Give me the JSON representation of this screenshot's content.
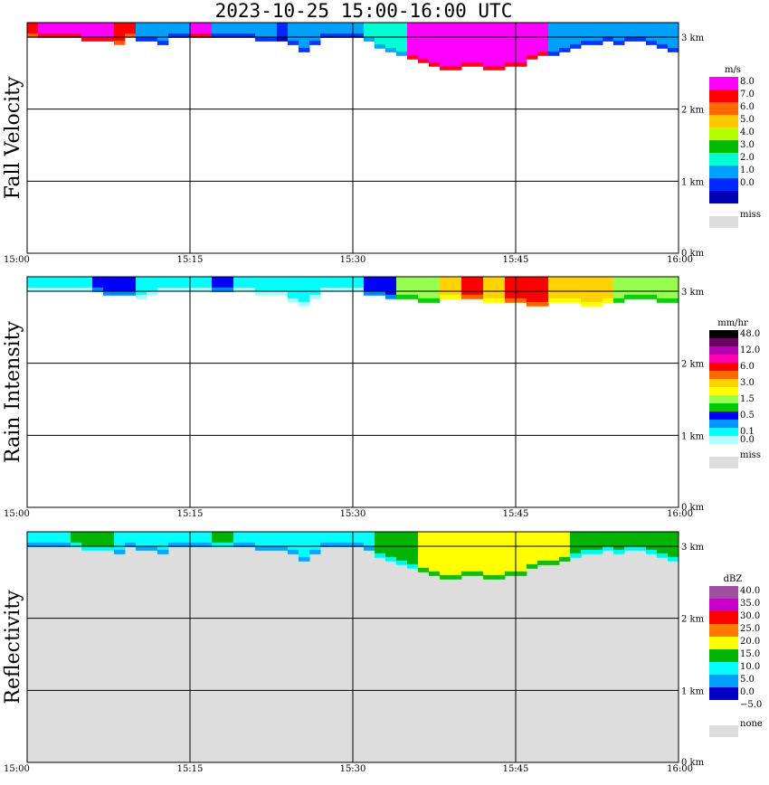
{
  "title": "2023-10-25   15:00-16:00 UTC",
  "chart_data": [
    {
      "type": "heatmap",
      "name": "fall-velocity",
      "ylabel": "Fall Velocity",
      "x_ticks": [
        "15:00",
        "15:15",
        "15:30",
        "15:45",
        "16:00"
      ],
      "y_ticks": [
        "0 km",
        "1 km",
        "2 km",
        "3 km"
      ],
      "xlim": [
        "15:00",
        "16:00"
      ],
      "ylim": [
        0,
        3.2
      ],
      "grid": true,
      "background": "#ffffff",
      "legend": {
        "unit": "m/s",
        "labels": [
          "8.0",
          "7.0",
          "6.0",
          "5.0",
          "4.0",
          "3.0",
          "2.0",
          "1.0",
          "0.0"
        ],
        "colors": [
          "#ff00ff",
          "#ff0000",
          "#ff6a00",
          "#ffc800",
          "#b4ff00",
          "#00bb00",
          "#00ffd2",
          "#00a0ff",
          "#0028ff",
          "#0000b4"
        ],
        "missing_label": "miss",
        "missing_color": "#dddddd"
      },
      "echo": {
        "top_km": 3.2,
        "base_km": [
          3.0,
          3.0,
          3.0,
          3.0,
          3.0,
          2.95,
          2.95,
          2.95,
          2.9,
          3.0,
          2.95,
          2.95,
          2.9,
          3.0,
          3.0,
          3.0,
          3.0,
          3.0,
          3.0,
          3.0,
          3.0,
          2.95,
          2.95,
          2.95,
          2.9,
          2.8,
          2.9,
          3.0,
          3.0,
          3.0,
          3.0,
          2.95,
          2.85,
          2.8,
          2.75,
          2.7,
          2.65,
          2.6,
          2.55,
          2.55,
          2.6,
          2.6,
          2.55,
          2.55,
          2.6,
          2.6,
          2.7,
          2.75,
          2.75,
          2.8,
          2.85,
          2.9,
          2.9,
          2.95,
          2.9,
          2.95,
          2.95,
          2.9,
          2.85,
          2.8
        ],
        "value": [
          7.5,
          8.0,
          8.0,
          8.0,
          8.0,
          8.0,
          8.0,
          8.0,
          7.5,
          7.0,
          1.5,
          1.0,
          1.0,
          1.0,
          1.0,
          8.0,
          8.0,
          1.0,
          1.0,
          1.0,
          1.0,
          1.0,
          1.0,
          0.5,
          1.5,
          1.5,
          1.0,
          1.0,
          1.0,
          1.0,
          1.0,
          2.0,
          2.0,
          2.0,
          2.0,
          8.0,
          8.0,
          8.0,
          8.0,
          8.0,
          8.0,
          8.0,
          8.0,
          8.0,
          8.0,
          8.0,
          8.0,
          8.0,
          1.5,
          1.5,
          1.5,
          1.5,
          1.5,
          1.5,
          1.5,
          1.5,
          1.5,
          1.5,
          1.5,
          1.5
        ]
      }
    },
    {
      "type": "heatmap",
      "name": "rain-intensity",
      "ylabel": "Rain Intensity",
      "x_ticks": [
        "15:00",
        "15:15",
        "15:30",
        "15:45",
        "16:00"
      ],
      "y_ticks": [
        "0 km",
        "1 km",
        "2 km",
        "3 km"
      ],
      "xlim": [
        "15:00",
        "16:00"
      ],
      "ylim": [
        0,
        3.2
      ],
      "grid": true,
      "background": "#ffffff",
      "legend": {
        "unit": "mm/hr",
        "labels": [
          "48.0",
          "",
          "12.0",
          "",
          "6.0",
          "",
          "3.0",
          "",
          "1.5",
          "",
          "0.5",
          "",
          "0.1",
          "0.0"
        ],
        "colors": [
          "#000000",
          "#6e0064",
          "#b400b4",
          "#ff00aa",
          "#ff0000",
          "#ff6a00",
          "#ffd200",
          "#ffff00",
          "#96ff50",
          "#00c800",
          "#0000ff",
          "#0096ff",
          "#00ffff",
          "#b4ffff"
        ],
        "missing_label": "miss",
        "missing_color": "#dddddd"
      },
      "echo": {
        "top_km": 3.2,
        "base_km": [
          3.0,
          3.0,
          3.0,
          3.0,
          3.0,
          3.0,
          3.0,
          2.95,
          2.95,
          2.95,
          2.9,
          2.95,
          3.0,
          3.0,
          3.0,
          3.0,
          3.0,
          3.0,
          3.0,
          3.0,
          3.0,
          2.95,
          2.95,
          2.95,
          2.85,
          2.8,
          2.9,
          3.0,
          3.0,
          3.0,
          3.0,
          2.95,
          2.95,
          2.9,
          2.9,
          2.9,
          2.85,
          2.85,
          2.9,
          2.9,
          2.9,
          2.9,
          2.85,
          2.85,
          2.85,
          2.85,
          2.8,
          2.8,
          2.85,
          2.85,
          2.85,
          2.8,
          2.8,
          2.85,
          2.85,
          2.9,
          2.9,
          2.9,
          2.85,
          2.85
        ],
        "value": [
          0.1,
          0.1,
          0.1,
          0.1,
          0.1,
          0.1,
          0.5,
          0.5,
          0.5,
          0.5,
          0.1,
          0.1,
          0.1,
          0.1,
          0.1,
          0.1,
          0.1,
          0.5,
          0.5,
          0.1,
          0.1,
          0.1,
          0.1,
          0.1,
          0.1,
          0.1,
          0.1,
          0.1,
          0.1,
          0.1,
          0.1,
          0.5,
          0.5,
          0.5,
          1.5,
          1.5,
          1.5,
          1.5,
          3.0,
          3.0,
          6.0,
          6.0,
          3.0,
          3.0,
          6.0,
          6.0,
          6.0,
          6.0,
          3.0,
          3.0,
          3.0,
          3.0,
          3.0,
          3.0,
          1.5,
          1.5,
          1.5,
          1.5,
          1.5,
          1.5
        ]
      }
    },
    {
      "type": "heatmap",
      "name": "reflectivity",
      "ylabel": "Reflectivity",
      "x_ticks": [
        "15:00",
        "15:15",
        "15:30",
        "15:45",
        "16:00"
      ],
      "y_ticks": [
        "0 km",
        "1 km",
        "2 km",
        "3 km"
      ],
      "xlim": [
        "15:00",
        "16:00"
      ],
      "ylim": [
        0,
        3.2
      ],
      "grid": true,
      "background": "#dddddd",
      "legend": {
        "unit": "dBZ",
        "labels": [
          "40.0",
          "35.0",
          "30.0",
          "25.0",
          "20.0",
          "15.0",
          "10.0",
          "5.0",
          "0.0",
          "−5.0"
        ],
        "colors": [
          "#a050a0",
          "#c800c8",
          "#ff0000",
          "#ff7800",
          "#ffff00",
          "#00b400",
          "#00ffff",
          "#00a0ff",
          "#0000c8",
          "#ffffff"
        ],
        "missing_label": "none",
        "missing_color": "#dddddd"
      },
      "echo": {
        "top_km": 3.2,
        "base_km": [
          3.0,
          3.0,
          3.0,
          3.0,
          3.0,
          2.95,
          2.95,
          2.95,
          2.9,
          3.0,
          2.95,
          2.95,
          2.9,
          3.0,
          3.0,
          3.0,
          3.0,
          3.0,
          3.0,
          3.0,
          3.0,
          2.95,
          2.95,
          2.95,
          2.9,
          2.8,
          2.9,
          3.0,
          3.0,
          3.0,
          3.0,
          2.95,
          2.85,
          2.8,
          2.75,
          2.7,
          2.65,
          2.6,
          2.55,
          2.55,
          2.6,
          2.6,
          2.55,
          2.55,
          2.6,
          2.6,
          2.7,
          2.75,
          2.75,
          2.8,
          2.85,
          2.9,
          2.9,
          2.95,
          2.9,
          2.95,
          2.95,
          2.9,
          2.85,
          2.8
        ],
        "value": [
          10,
          10,
          10,
          10,
          15,
          15,
          15,
          15,
          10,
          10,
          10,
          10,
          10,
          10,
          10,
          10,
          10,
          15,
          15,
          10,
          10,
          10,
          10,
          10,
          10,
          10,
          10,
          10,
          10,
          10,
          10,
          10,
          15,
          15,
          15,
          15,
          20,
          20,
          20,
          20,
          20,
          20,
          20,
          20,
          20,
          20,
          20,
          20,
          20,
          20,
          15,
          15,
          15,
          15,
          15,
          15,
          15,
          15,
          15,
          15
        ]
      }
    }
  ]
}
